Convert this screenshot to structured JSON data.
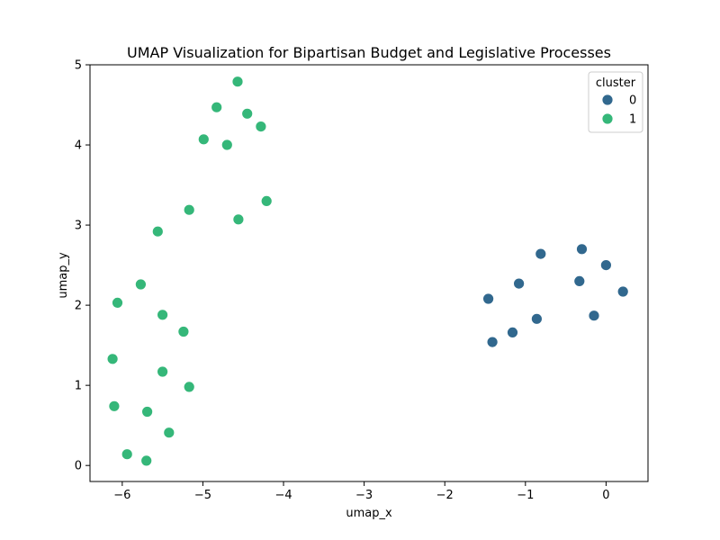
{
  "chart_data": {
    "type": "scatter",
    "title": "UMAP Visualization for Bipartisan Budget and Legislative Processes",
    "xlabel": "umap_x",
    "ylabel": "umap_y",
    "xlim": [
      -6.4,
      0.52
    ],
    "ylim": [
      -0.2,
      5.0
    ],
    "xticks": [
      -6,
      -5,
      -4,
      -3,
      -2,
      -1,
      0
    ],
    "yticks": [
      0,
      1,
      2,
      3,
      4,
      5
    ],
    "grid": false,
    "legend": {
      "title": "cluster",
      "placement": "top-right"
    },
    "series": [
      {
        "name": "0",
        "color": "#31688e",
        "points": [
          [
            -0.3,
            2.7
          ],
          [
            -0.81,
            2.64
          ],
          [
            0.0,
            2.5
          ],
          [
            -1.08,
            2.27
          ],
          [
            -0.33,
            2.3
          ],
          [
            0.21,
            2.17
          ],
          [
            -1.46,
            2.08
          ],
          [
            -0.15,
            1.87
          ],
          [
            -0.86,
            1.83
          ],
          [
            -1.16,
            1.66
          ],
          [
            -1.41,
            1.54
          ]
        ]
      },
      {
        "name": "1",
        "color": "#35b779",
        "points": [
          [
            -4.57,
            4.79
          ],
          [
            -4.83,
            4.47
          ],
          [
            -4.45,
            4.39
          ],
          [
            -4.28,
            4.23
          ],
          [
            -4.99,
            4.07
          ],
          [
            -4.7,
            4.0
          ],
          [
            -4.21,
            3.3
          ],
          [
            -5.17,
            3.19
          ],
          [
            -4.56,
            3.07
          ],
          [
            -5.56,
            2.92
          ],
          [
            -5.77,
            2.26
          ],
          [
            -6.06,
            2.03
          ],
          [
            -5.5,
            1.88
          ],
          [
            -5.24,
            1.67
          ],
          [
            -6.12,
            1.33
          ],
          [
            -5.5,
            1.17
          ],
          [
            -5.17,
            0.98
          ],
          [
            -6.1,
            0.74
          ],
          [
            -5.69,
            0.67
          ],
          [
            -5.42,
            0.41
          ],
          [
            -5.94,
            0.14
          ],
          [
            -5.7,
            0.06
          ]
        ]
      }
    ]
  }
}
